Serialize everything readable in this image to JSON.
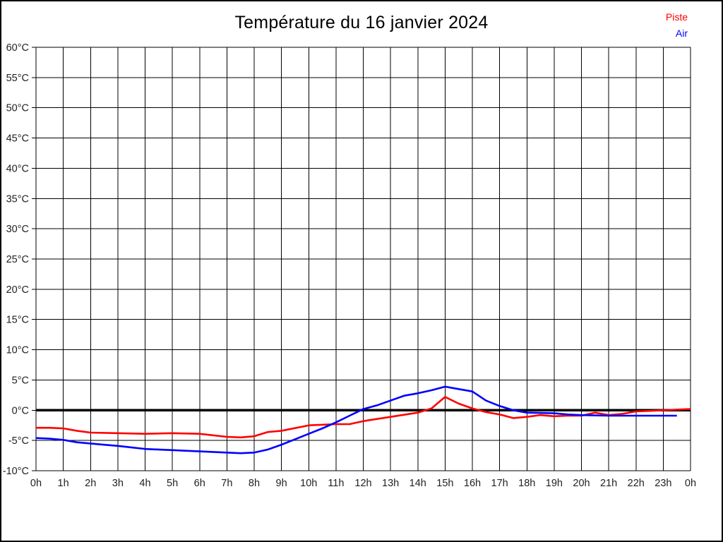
{
  "title": "Température du 16 janvier 2024",
  "legend": {
    "items": [
      {
        "label": "Piste",
        "color": "#ff0000"
      },
      {
        "label": "Air",
        "color": "#0000ff"
      }
    ]
  },
  "colors": {
    "grid": "#000000",
    "zero_line": "#000000",
    "tick_text": "#222222",
    "background": "#ffffff"
  },
  "chart_data": {
    "type": "line",
    "title": "Température du 16 janvier 2024",
    "xlabel": "",
    "ylabel": "",
    "x_unit": "h",
    "y_unit": "°C",
    "xlim": [
      0,
      24
    ],
    "ylim": [
      -10,
      60
    ],
    "y_step": 5,
    "grid": true,
    "legend_position": "top-right",
    "zero_line": {
      "value": 0,
      "thick": true
    },
    "x_tick_labels": [
      "0h",
      "1h",
      "2h",
      "3h",
      "4h",
      "5h",
      "6h",
      "7h",
      "8h",
      "9h",
      "10h",
      "11h",
      "12h",
      "13h",
      "14h",
      "15h",
      "16h",
      "17h",
      "18h",
      "19h",
      "20h",
      "21h",
      "22h",
      "23h",
      "0h"
    ],
    "y_tick_labels": [
      "60°C",
      "55°C",
      "50°C",
      "45°C",
      "40°C",
      "35°C",
      "30°C",
      "25°C",
      "20°C",
      "15°C",
      "10°C",
      "5°C",
      "0°C",
      "-5°C",
      "-10°C"
    ],
    "series": [
      {
        "name": "Piste",
        "color": "#ff0000",
        "points": [
          [
            0,
            -2.9
          ],
          [
            0.5,
            -2.9
          ],
          [
            1,
            -3.0
          ],
          [
            1.5,
            -3.4
          ],
          [
            2,
            -3.7
          ],
          [
            3,
            -3.8
          ],
          [
            4,
            -3.9
          ],
          [
            5,
            -3.8
          ],
          [
            6,
            -3.9
          ],
          [
            7,
            -4.4
          ],
          [
            7.5,
            -4.5
          ],
          [
            8,
            -4.3
          ],
          [
            8.5,
            -3.6
          ],
          [
            9,
            -3.4
          ],
          [
            10,
            -2.5
          ],
          [
            11,
            -2.3
          ],
          [
            11.5,
            -2.3
          ],
          [
            12,
            -1.8
          ],
          [
            13,
            -1.1
          ],
          [
            14,
            -0.4
          ],
          [
            14.5,
            0.3
          ],
          [
            15,
            2.2
          ],
          [
            15.5,
            1.1
          ],
          [
            16,
            0.3
          ],
          [
            16.5,
            -0.3
          ],
          [
            17,
            -0.7
          ],
          [
            17.5,
            -1.3
          ],
          [
            18,
            -1.1
          ],
          [
            18.5,
            -0.8
          ],
          [
            19,
            -1.0
          ],
          [
            19.5,
            -0.9
          ],
          [
            20,
            -0.9
          ],
          [
            20.5,
            -0.4
          ],
          [
            21,
            -0.8
          ],
          [
            21.5,
            -0.6
          ],
          [
            22,
            -0.2
          ],
          [
            22.5,
            -0.1
          ],
          [
            23,
            0.0
          ],
          [
            23.5,
            0.1
          ],
          [
            24,
            0.2
          ]
        ]
      },
      {
        "name": "Air",
        "color": "#0000ff",
        "points": [
          [
            0,
            -4.6
          ],
          [
            0.5,
            -4.7
          ],
          [
            1,
            -4.9
          ],
          [
            1.5,
            -5.3
          ],
          [
            2,
            -5.5
          ],
          [
            2.5,
            -5.7
          ],
          [
            3,
            -5.9
          ],
          [
            4,
            -6.4
          ],
          [
            5,
            -6.6
          ],
          [
            6,
            -6.8
          ],
          [
            7,
            -7.0
          ],
          [
            7.5,
            -7.1
          ],
          [
            8,
            -7.0
          ],
          [
            8.5,
            -6.5
          ],
          [
            9,
            -5.7
          ],
          [
            9.5,
            -4.8
          ],
          [
            10,
            -3.9
          ],
          [
            10.5,
            -3.0
          ],
          [
            11,
            -2.0
          ],
          [
            11.5,
            -0.9
          ],
          [
            12,
            0.2
          ],
          [
            12.5,
            0.8
          ],
          [
            13,
            1.6
          ],
          [
            13.5,
            2.4
          ],
          [
            14,
            2.8
          ],
          [
            14.5,
            3.3
          ],
          [
            15,
            3.9
          ],
          [
            15.5,
            3.5
          ],
          [
            16,
            3.1
          ],
          [
            16.5,
            1.6
          ],
          [
            17,
            0.7
          ],
          [
            17.5,
            0.0
          ],
          [
            18,
            -0.4
          ],
          [
            19,
            -0.5
          ],
          [
            19.5,
            -0.7
          ],
          [
            20,
            -0.8
          ],
          [
            21,
            -0.9
          ],
          [
            22,
            -0.9
          ],
          [
            23,
            -0.9
          ],
          [
            23.5,
            -0.9
          ]
        ]
      }
    ]
  }
}
